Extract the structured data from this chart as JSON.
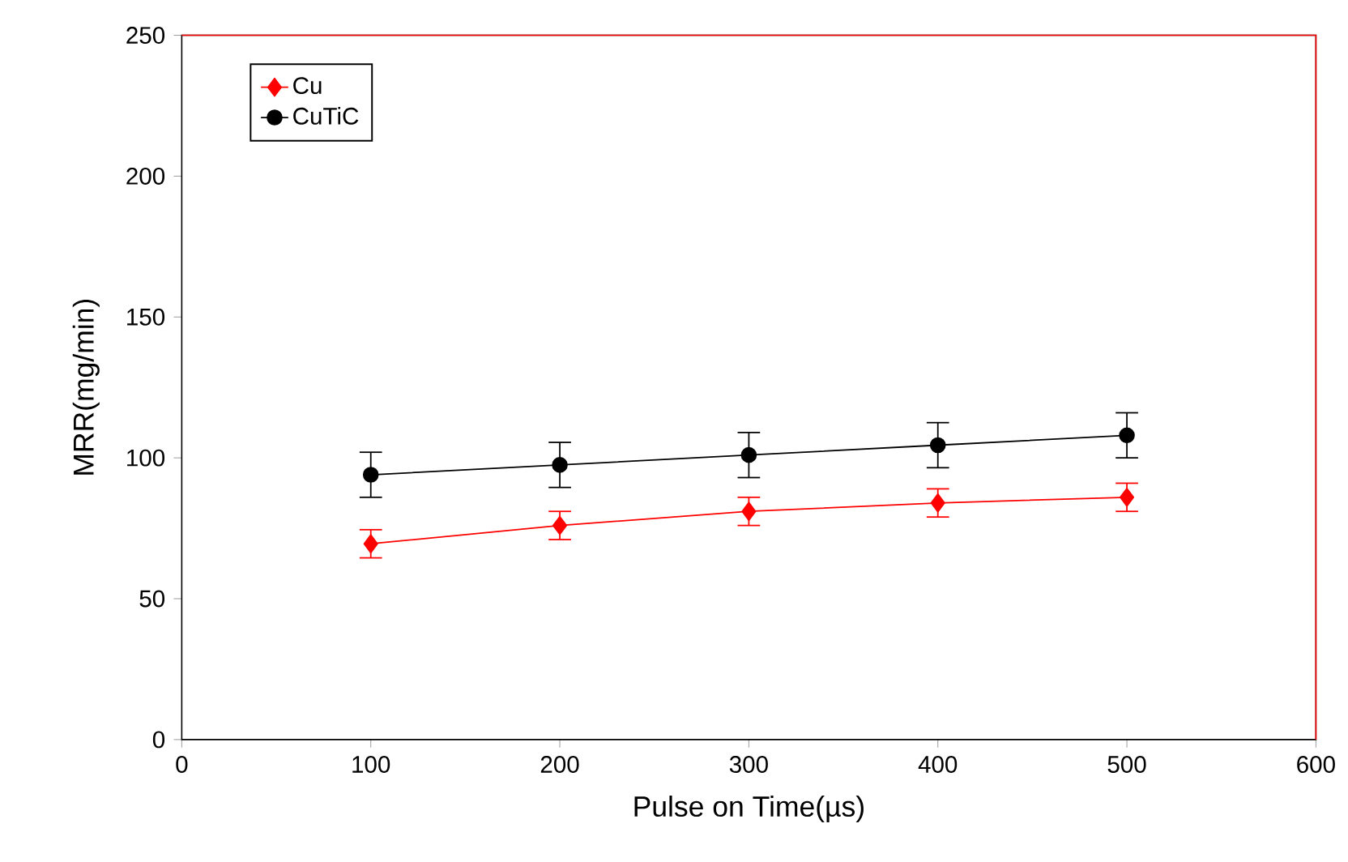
{
  "chart_data": {
    "type": "line",
    "xlabel": "Pulse on Time(µs)",
    "ylabel": "MRR(mg/min)",
    "x": [
      100,
      200,
      300,
      400,
      500
    ],
    "series": [
      {
        "name": "Cu",
        "color": "#ff0000",
        "marker": "diamond",
        "values": [
          69.5,
          76,
          81,
          84,
          86
        ],
        "errors": [
          5,
          5,
          5,
          5,
          5
        ]
      },
      {
        "name": "CuTiC",
        "color": "#000000",
        "marker": "circle",
        "values": [
          94,
          97.5,
          101,
          104.5,
          108
        ],
        "errors": [
          8,
          8,
          8,
          8,
          8
        ]
      }
    ],
    "xlim": [
      0,
      600
    ],
    "xticks": [
      0,
      100,
      200,
      300,
      400,
      500,
      600
    ],
    "ylim": [
      0,
      250
    ],
    "yticks": [
      0,
      50,
      100,
      150,
      200,
      250
    ],
    "grid": false,
    "legend": "top left",
    "line_style": "solid"
  }
}
